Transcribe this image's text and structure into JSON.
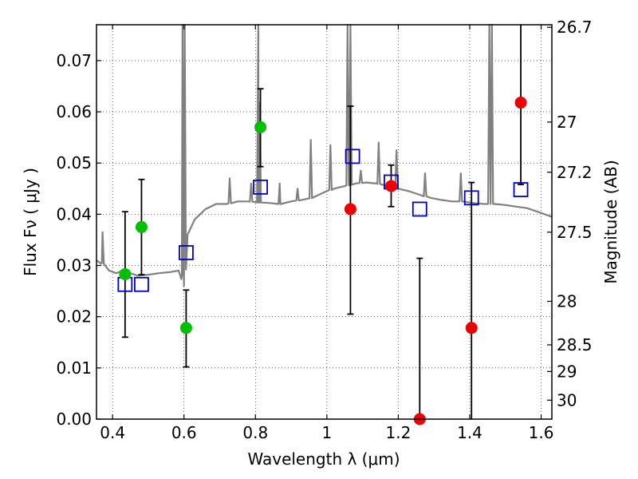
{
  "chart_data": {
    "type": "scatter",
    "xlabel": "Wavelength  λ (μm)",
    "ylabel": "Flux  Fν  ( μJy )",
    "y2label": "Magnitude (AB)",
    "xlim": [
      0.355,
      1.63
    ],
    "ylim": [
      0.0,
      0.077
    ],
    "grid": true,
    "x_ticks": [
      0.4,
      0.6,
      0.8,
      1.0,
      1.2,
      1.4,
      1.6
    ],
    "x_tick_labels": [
      "0.4",
      "0.6",
      "0.8",
      "1",
      "1.2",
      "1.4",
      "1.6"
    ],
    "y_ticks": [
      0.0,
      0.01,
      0.02,
      0.03,
      0.04,
      0.05,
      0.06,
      0.07
    ],
    "y_tick_labels": [
      "0.00",
      "0.01",
      "0.02",
      "0.03",
      "0.04",
      "0.05",
      "0.06",
      "0.07"
    ],
    "y2_ticks": [
      {
        "label": "26.7",
        "flux": 0.0765
      },
      {
        "label": "27",
        "flux": 0.058
      },
      {
        "label": "27.2",
        "flux": 0.0482
      },
      {
        "label": "27.5",
        "flux": 0.0365
      },
      {
        "label": "28",
        "flux": 0.023
      },
      {
        "label": "28.5",
        "flux": 0.0145
      },
      {
        "label": "29",
        "flux": 0.0093
      },
      {
        "label": "30",
        "flux": 0.0037
      }
    ],
    "series": [
      {
        "name": "green photometry",
        "color": "#00c000",
        "marker": "circle",
        "points": [
          {
            "x": 0.435,
            "y": 0.0283,
            "yerr": [
              0.016,
              0.0405
            ]
          },
          {
            "x": 0.481,
            "y": 0.0375,
            "yerr": [
              0.0282,
              0.0468
            ]
          },
          {
            "x": 0.606,
            "y": 0.0178,
            "yerr": [
              0.0102,
              0.0252
            ]
          },
          {
            "x": 0.814,
            "y": 0.057,
            "yerr": [
              0.0493,
              0.0645
            ]
          }
        ]
      },
      {
        "name": "red photometry",
        "color": "#ee0000",
        "marker": "circle",
        "points": [
          {
            "x": 1.066,
            "y": 0.041,
            "yerr": [
              0.0205,
              0.0611
            ]
          },
          {
            "x": 1.18,
            "y": 0.0455,
            "yerr": [
              0.0415,
              0.0496
            ]
          },
          {
            "x": 1.26,
            "y": 0.0,
            "yerr": [
              0.0,
              0.0314
            ]
          },
          {
            "x": 1.405,
            "y": 0.0178,
            "yerr": [
              0.0,
              0.0462
            ]
          },
          {
            "x": 1.543,
            "y": 0.0618,
            "yerr": [
              0.0458,
              0.077
            ]
          }
        ]
      },
      {
        "name": "model synthetic photometry",
        "color": "#0000cc",
        "marker": "open-square",
        "points": [
          {
            "x": 0.435,
            "y": 0.0263
          },
          {
            "x": 0.481,
            "y": 0.0263
          },
          {
            "x": 0.606,
            "y": 0.0325
          },
          {
            "x": 0.814,
            "y": 0.0453
          },
          {
            "x": 1.072,
            "y": 0.0513
          },
          {
            "x": 1.18,
            "y": 0.0463
          },
          {
            "x": 1.26,
            "y": 0.041
          },
          {
            "x": 1.405,
            "y": 0.0432
          },
          {
            "x": 1.543,
            "y": 0.0448
          }
        ]
      }
    ],
    "spectrum": {
      "name": "model spectrum",
      "color": "#808080",
      "continuum": [
        [
          0.355,
          0.031
        ],
        [
          0.37,
          0.0305
        ],
        [
          0.39,
          0.029
        ],
        [
          0.41,
          0.0285
        ],
        [
          0.43,
          0.029
        ],
        [
          0.45,
          0.0285
        ],
        [
          0.47,
          0.028
        ],
        [
          0.5,
          0.0282
        ],
        [
          0.53,
          0.0285
        ],
        [
          0.56,
          0.0287
        ],
        [
          0.585,
          0.029
        ],
        [
          0.594,
          0.028
        ],
        [
          0.6,
          0.026
        ],
        [
          0.605,
          0.034
        ],
        [
          0.61,
          0.036
        ],
        [
          0.63,
          0.039
        ],
        [
          0.66,
          0.041
        ],
        [
          0.69,
          0.042
        ],
        [
          0.72,
          0.042
        ],
        [
          0.75,
          0.0425
        ],
        [
          0.78,
          0.0425
        ],
        [
          0.81,
          0.0423
        ],
        [
          0.84,
          0.0422
        ],
        [
          0.87,
          0.042
        ],
        [
          0.9,
          0.0425
        ],
        [
          0.93,
          0.0428
        ],
        [
          0.96,
          0.0432
        ],
        [
          0.99,
          0.0442
        ],
        [
          1.02,
          0.045
        ],
        [
          1.05,
          0.0455
        ],
        [
          1.08,
          0.046
        ],
        [
          1.11,
          0.0462
        ],
        [
          1.14,
          0.046
        ],
        [
          1.17,
          0.0455
        ],
        [
          1.2,
          0.045
        ],
        [
          1.23,
          0.0445
        ],
        [
          1.26,
          0.0438
        ],
        [
          1.29,
          0.0432
        ],
        [
          1.32,
          0.0428
        ],
        [
          1.35,
          0.0425
        ],
        [
          1.38,
          0.0425
        ],
        [
          1.41,
          0.0422
        ],
        [
          1.44,
          0.042
        ],
        [
          1.47,
          0.042
        ],
        [
          1.5,
          0.0418
        ],
        [
          1.53,
          0.0415
        ],
        [
          1.56,
          0.0412
        ],
        [
          1.59,
          0.0405
        ],
        [
          1.63,
          0.0395
        ]
      ],
      "lines": [
        [
          0.372,
          0.0365
        ],
        [
          0.596,
          0.077
        ],
        [
          0.602,
          0.077
        ],
        [
          0.728,
          0.047
        ],
        [
          0.788,
          0.046
        ],
        [
          0.808,
          0.077
        ],
        [
          0.812,
          0.0618
        ],
        [
          0.868,
          0.046
        ],
        [
          0.918,
          0.045
        ],
        [
          0.955,
          0.0545
        ],
        [
          1.01,
          0.0535
        ],
        [
          1.058,
          0.077
        ],
        [
          1.066,
          0.077
        ],
        [
          1.095,
          0.0485
        ],
        [
          1.145,
          0.054
        ],
        [
          1.195,
          0.0525
        ],
        [
          1.275,
          0.048
        ],
        [
          1.375,
          0.048
        ],
        [
          1.455,
          0.077
        ],
        [
          1.462,
          0.077
        ]
      ]
    }
  }
}
